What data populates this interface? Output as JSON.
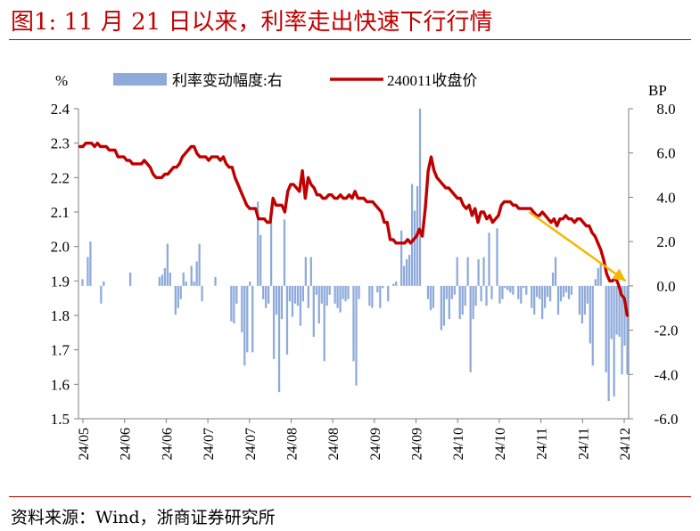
{
  "header": {
    "title": "图1:  11 月 21 日以来，利率走出快速下行行情"
  },
  "footer": {
    "source": "资料来源：Wind，浙商证券研究所"
  },
  "colors": {
    "title": "#c00000",
    "bars": "#8eaadb",
    "line": "#c00000",
    "arrow": "#f5b800"
  },
  "chart_data": {
    "type": "bar+line",
    "left_axis": {
      "unit": "%",
      "ylim": [
        1.5,
        2.4
      ],
      "ticks": [
        "2.4",
        "2.3",
        "2.2",
        "2.1",
        "2.0",
        "1.9",
        "1.8",
        "1.7",
        "1.6",
        "1.5"
      ]
    },
    "right_axis": {
      "unit": "BP",
      "ylim": [
        -6.0,
        8.0
      ],
      "ticks": [
        "8.0",
        "6.0",
        "4.0",
        "2.0",
        "0.0",
        "-2.0",
        "-4.0",
        "-6.0"
      ]
    },
    "x_ticks": [
      "24/05",
      "24/06",
      "24/06",
      "24/07",
      "24/07",
      "24/08",
      "24/08",
      "24/09",
      "24/09",
      "24/10",
      "24/10",
      "24/11",
      "24/11",
      "24/12"
    ],
    "legend": {
      "position": "top",
      "bar_label": "利率变动幅度:右",
      "line_label": "240011收盘价"
    },
    "series": [
      {
        "name": "240011收盘价",
        "axis": "left",
        "values": [
          2.29,
          2.29,
          2.3,
          2.3,
          2.3,
          2.29,
          2.3,
          2.29,
          2.29,
          2.29,
          2.28,
          2.28,
          2.28,
          2.26,
          2.26,
          2.26,
          2.25,
          2.25,
          2.24,
          2.24,
          2.24,
          2.24,
          2.25,
          2.24,
          2.23,
          2.21,
          2.2,
          2.2,
          2.2,
          2.21,
          2.21,
          2.22,
          2.23,
          2.23,
          2.24,
          2.26,
          2.27,
          2.28,
          2.29,
          2.29,
          2.27,
          2.26,
          2.26,
          2.26,
          2.25,
          2.26,
          2.26,
          2.26,
          2.25,
          2.26,
          2.24,
          2.23,
          2.23,
          2.2,
          2.18,
          2.16,
          2.14,
          2.12,
          2.11,
          2.11,
          2.11,
          2.08,
          2.08,
          2.08,
          2.07,
          2.07,
          2.14,
          2.12,
          2.12,
          2.12,
          2.1,
          2.16,
          2.18,
          2.18,
          2.17,
          2.16,
          2.22,
          2.14,
          2.2,
          2.18,
          2.17,
          2.15,
          2.15,
          2.14,
          2.14,
          2.15,
          2.15,
          2.14,
          2.14,
          2.15,
          2.14,
          2.14,
          2.15,
          2.14,
          2.16,
          2.14,
          2.14,
          2.14,
          2.13,
          2.13,
          2.13,
          2.12,
          2.11,
          2.1,
          2.07,
          2.07,
          2.02,
          2.02,
          2.01,
          2.01,
          2.01,
          2.01,
          2.02,
          2.01,
          2.02,
          2.03,
          2.05,
          2.03,
          2.11,
          2.22,
          2.26,
          2.22,
          2.2,
          2.19,
          2.18,
          2.17,
          2.17,
          2.16,
          2.15,
          2.14,
          2.14,
          2.12,
          2.11,
          2.12,
          2.09,
          2.11,
          2.07,
          2.1,
          2.1,
          2.08,
          2.09,
          2.07,
          2.08,
          2.09,
          2.12,
          2.13,
          2.13,
          2.13,
          2.12,
          2.12,
          2.11,
          2.11,
          2.11,
          2.11,
          2.11,
          2.1,
          2.09,
          2.09,
          2.1,
          2.09,
          2.08,
          2.07,
          2.08,
          2.06,
          2.08,
          2.08,
          2.09,
          2.08,
          2.08,
          2.07,
          2.08,
          2.08,
          2.07,
          2.06,
          2.06,
          2.04,
          2.03,
          2.01,
          1.99,
          1.96,
          1.92,
          1.9,
          1.9,
          1.91,
          1.89,
          1.86,
          1.85,
          1.8
        ]
      },
      {
        "name": "利率变动幅度:右",
        "axis": "right",
        "values": [
          0,
          0.3,
          0,
          1.3,
          2.0,
          0,
          0,
          0,
          -0.8,
          0.2,
          0,
          0,
          0,
          0,
          0,
          0,
          0,
          0,
          0,
          0.6,
          0,
          0,
          0,
          0,
          0,
          0,
          0,
          0,
          0,
          0,
          0.4,
          0.5,
          0.8,
          1.9,
          0.6,
          0,
          -1.3,
          -1.0,
          -0.6,
          0.6,
          0.2,
          0,
          0.9,
          0.2,
          1.1,
          1.9,
          -0.7,
          0,
          0,
          0,
          0,
          0.4,
          0,
          0,
          0,
          0,
          0,
          -1.6,
          -1.7,
          -0.8,
          0,
          -2.1,
          -3.6,
          -3.0,
          0.2,
          -3.0,
          0,
          3.8,
          2.3,
          -0.6,
          -1.0,
          -0.8,
          2.9,
          -3.3,
          -1.3,
          -4.8,
          -1.5,
          3.0,
          -3.1,
          -0.7,
          -1.4,
          -0.8,
          -0.9,
          -1.8,
          -0.7,
          1.3,
          -1.0,
          1.3,
          -2.3,
          -0.4,
          -1.7,
          -0.8,
          -3.4,
          -0.9,
          -0.4,
          0,
          -0.8,
          -1.0,
          -1.2,
          -0.6,
          -0.7,
          -0.6,
          0,
          -3.4,
          -4.5,
          -0.6,
          0,
          0,
          0,
          -0.9,
          -1.0,
          0,
          -0.3,
          -1.0,
          -0.1,
          0,
          -0.7,
          0,
          0.1,
          0.2,
          0,
          2.5,
          0.9,
          1.2,
          1.4,
          4.6,
          3.4,
          4.5,
          8.0,
          0,
          0,
          -0.6,
          -1.1,
          -1.0,
          0,
          0,
          -2.0,
          -1.8,
          -0.6,
          -1.5,
          -0.6,
          -0.4,
          1.3,
          -1.5,
          -1.3,
          -0.9,
          1.3,
          -3.9,
          -1.5,
          -0.9,
          1.2,
          -0.7,
          1.3,
          -0.9,
          2.4,
          -0.6,
          0,
          2.6,
          -0.8,
          -0.6,
          -0.1,
          -0.2,
          -0.3,
          -0.4,
          0,
          -0.6,
          -0.8,
          -0.1,
          -0.4,
          0,
          -1.0,
          -1.3,
          -0.5,
          -0.6,
          -1.5,
          -1.0,
          -0.5,
          -0.7,
          0.6,
          1.3,
          -1.3,
          -0.7,
          -0.5,
          -0.3,
          -0.6,
          -0.4,
          0,
          0,
          -1.3,
          -1.7,
          -1.3,
          -0.8,
          -2.6,
          -3.6,
          0.3,
          0.8,
          1.0,
          0,
          -3.9,
          -5.2,
          -2.4,
          -5.0,
          -2.2,
          -2.3,
          -4.0,
          -2.7,
          -4.0
        ]
      }
    ],
    "annotation": {
      "type": "arrow",
      "color": "#f5b800",
      "from": [
        154,
        2.1
      ],
      "to": [
        187,
        1.9
      ]
    }
  }
}
